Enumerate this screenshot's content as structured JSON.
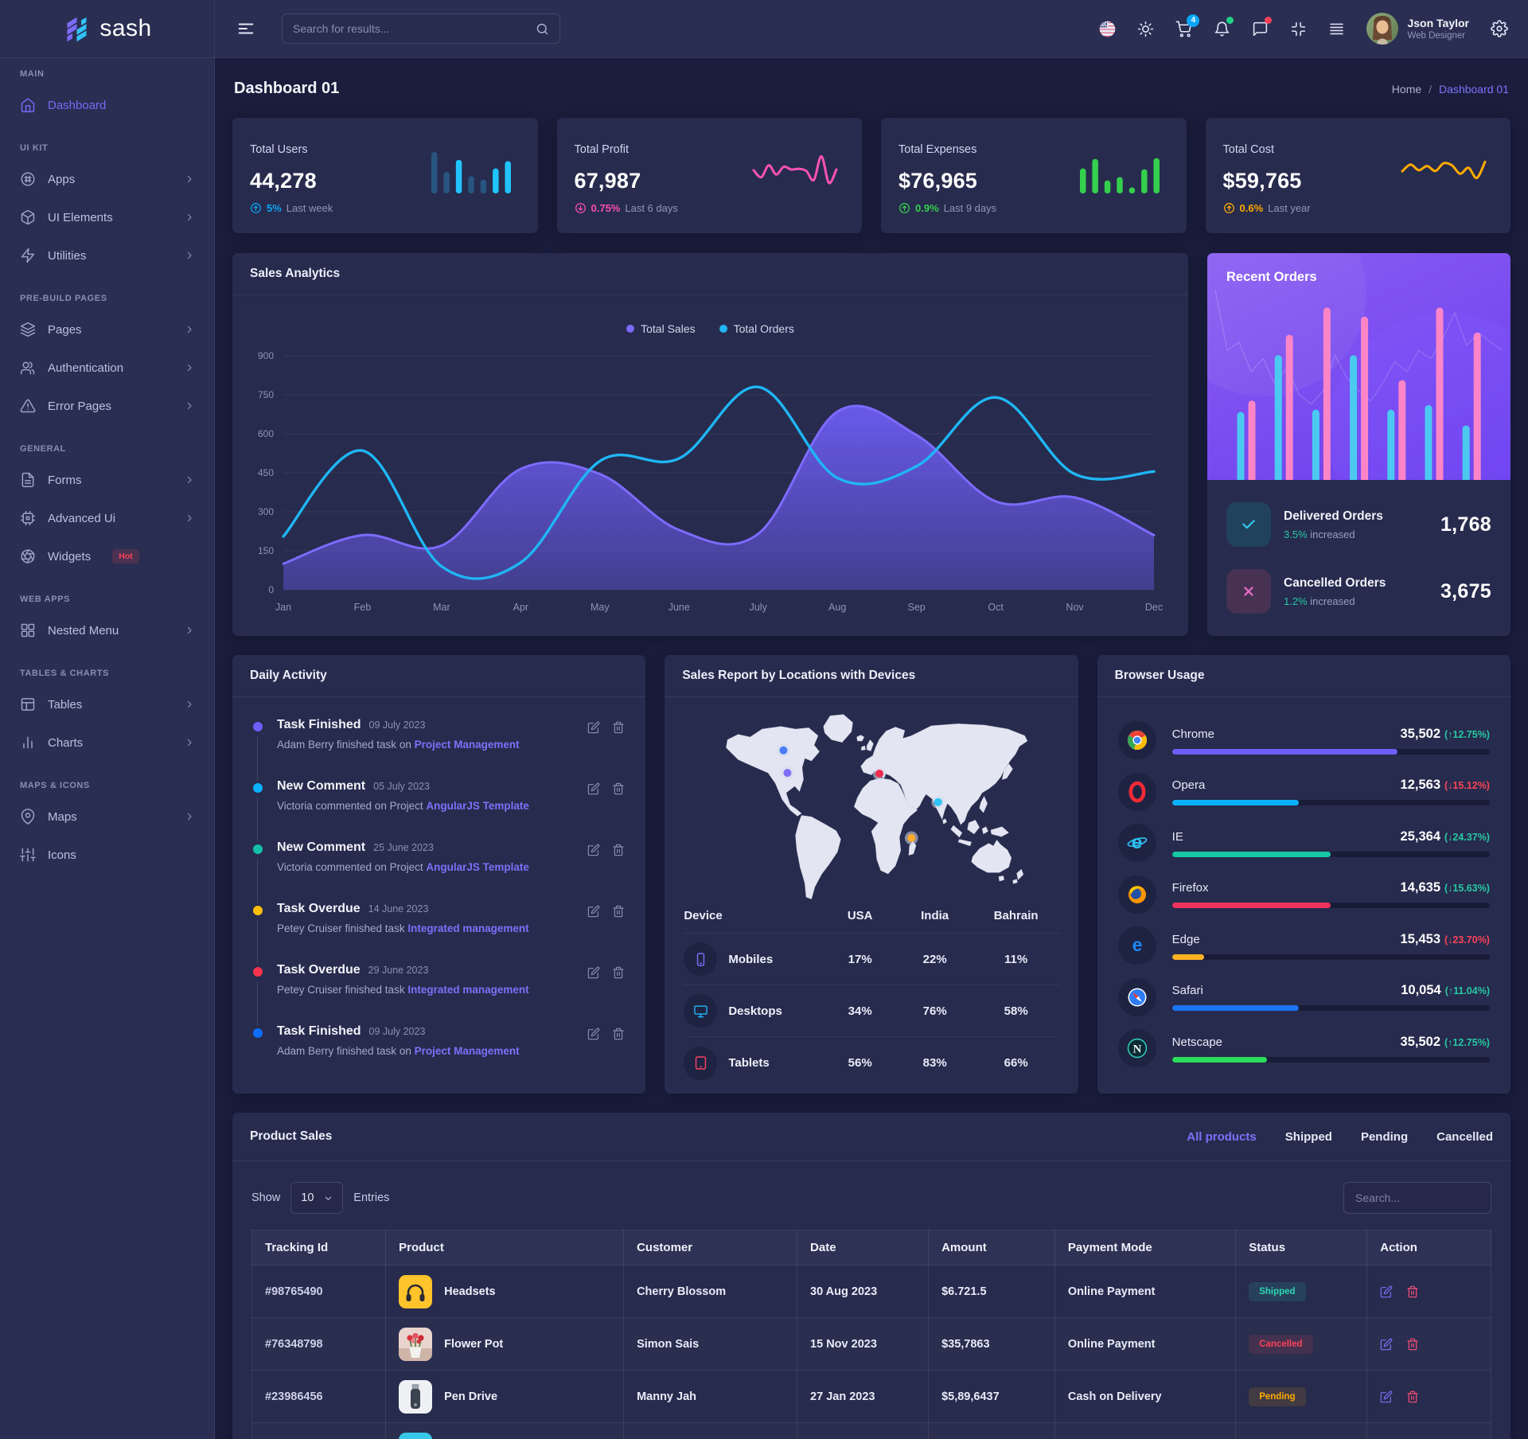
{
  "brand": {
    "name": "sash"
  },
  "sidebar": {
    "sections": [
      {
        "label": "MAIN",
        "items": [
          {
            "label": "Dashboard",
            "icon": "home",
            "active": true,
            "chevron": false
          }
        ]
      },
      {
        "label": "UI KIT",
        "items": [
          {
            "label": "Apps",
            "icon": "apps",
            "chevron": true
          },
          {
            "label": "UI Elements",
            "icon": "box",
            "chevron": true
          },
          {
            "label": "Utilities",
            "icon": "zap",
            "chevron": true
          }
        ]
      },
      {
        "label": "PRE-BUILD PAGES",
        "items": [
          {
            "label": "Pages",
            "icon": "layers",
            "chevron": true
          },
          {
            "label": "Authentication",
            "icon": "users",
            "chevron": true
          },
          {
            "label": "Error Pages",
            "icon": "alert",
            "chevron": true
          }
        ]
      },
      {
        "label": "GENERAL",
        "items": [
          {
            "label": "Forms",
            "icon": "file",
            "chevron": true
          },
          {
            "label": "Advanced Ui",
            "icon": "cpu",
            "chevron": true
          },
          {
            "label": "Widgets",
            "icon": "aperture",
            "chevron": false,
            "badge": "Hot"
          }
        ]
      },
      {
        "label": "WEB APPS",
        "items": [
          {
            "label": "Nested Menu",
            "icon": "grid",
            "chevron": true
          }
        ]
      },
      {
        "label": "TABLES & CHARTS",
        "items": [
          {
            "label": "Tables",
            "icon": "table",
            "chevron": true
          },
          {
            "label": "Charts",
            "icon": "chart",
            "chevron": true
          }
        ]
      },
      {
        "label": "MAPS & ICONS",
        "items": [
          {
            "label": "Maps",
            "icon": "pin",
            "chevron": true
          },
          {
            "label": "Icons",
            "icon": "sliders",
            "chevron": false
          }
        ]
      }
    ]
  },
  "header": {
    "search_placeholder": "Search for results...",
    "cart_badge": "4",
    "user": {
      "name": "Json Taylor",
      "role": "Web Designer"
    }
  },
  "page": {
    "title": "Dashboard 01",
    "breadcrumb_home": "Home",
    "breadcrumb_sep": "/",
    "breadcrumb_current": "Dashboard 01"
  },
  "stats": [
    {
      "label": "Total Users",
      "value": "44,278",
      "delta": "5%",
      "period": "Last week",
      "dir": "up",
      "accent": "#0da5f4",
      "spark": {
        "type": "bars",
        "values": [
          96,
          50,
          78,
          40,
          32,
          58,
          75
        ],
        "bright": [
          0,
          0,
          1,
          0,
          0,
          1,
          1
        ],
        "color": "#21c3fc",
        "color_dim": "#2a6391"
      }
    },
    {
      "label": "Total Profit",
      "value": "67,987",
      "delta": "0.75%",
      "period": "Last 6 days",
      "dir": "down",
      "accent": "#fa4fb3",
      "spark": {
        "type": "line",
        "color": "#fa52b5",
        "values": [
          48,
          28,
          62,
          36,
          58,
          50,
          52,
          46,
          20,
          88,
          12,
          50
        ]
      }
    },
    {
      "label": "Total Expenses",
      "value": "$76,965",
      "delta": "0.9%",
      "period": "Last 9 days",
      "dir": "up",
      "accent": "#35cf4e",
      "spark": {
        "type": "bars",
        "values": [
          58,
          80,
          30,
          38,
          14,
          56,
          82
        ],
        "bright": [
          1,
          1,
          1,
          1,
          1,
          1,
          1
        ],
        "color": "#35cf4e",
        "color_dim": "#35cf4e"
      }
    },
    {
      "label": "Total Cost",
      "value": "$59,765",
      "delta": "0.6%",
      "period": "Last year",
      "dir": "up",
      "accent": "#ffab00",
      "spark": {
        "type": "line",
        "color": "#ffab00",
        "values": [
          45,
          64,
          48,
          60,
          46,
          68,
          62,
          38,
          55,
          26,
          72
        ]
      }
    }
  ],
  "chart_data": [
    {
      "name": "sales_analytics",
      "type": "area-line",
      "title": "Sales Analytics",
      "categories": [
        "Jan",
        "Feb",
        "Mar",
        "Apr",
        "May",
        "June",
        "July",
        "Aug",
        "Sep",
        "Oct",
        "Nov",
        "Dec"
      ],
      "series": [
        {
          "name": "Total Sales",
          "color": "#7c6bfd",
          "fill": true,
          "values": [
            100,
            210,
            170,
            465,
            445,
            230,
            215,
            685,
            595,
            340,
            355,
            210
          ]
        },
        {
          "name": "Total Orders",
          "color": "#1fb6f5",
          "fill": false,
          "values": [
            205,
            535,
            90,
            105,
            495,
            505,
            780,
            430,
            475,
            740,
            445,
            455
          ]
        }
      ],
      "ylim": [
        0,
        900
      ],
      "yticks": [
        0,
        150,
        300,
        450,
        600,
        750,
        900
      ],
      "grid": "horizontal",
      "legend_position": "top"
    },
    {
      "name": "recent_orders_bars",
      "type": "bar",
      "title": "Recent Orders",
      "series": [
        {
          "name": "orders-a",
          "color": "#4cc9f0",
          "values": [
            30,
            55,
            31,
            55,
            31,
            33,
            24
          ]
        },
        {
          "name": "orders-b",
          "color": "#fc85c7",
          "values": [
            35,
            64,
            76,
            72,
            44,
            76,
            65
          ]
        }
      ],
      "overlay_line": [
        92,
        55,
        60,
        42,
        50,
        34,
        45,
        28,
        22,
        30,
        52,
        38,
        30,
        24,
        35,
        48,
        42,
        55,
        50,
        62,
        78,
        58,
        66,
        60,
        55
      ]
    },
    {
      "name": "device_report",
      "type": "table",
      "columns": [
        "Device",
        "USA",
        "India",
        "Bahrain"
      ],
      "rows": [
        {
          "device": "Mobiles",
          "icon": "mobile",
          "color": "#7c6ff8",
          "values": [
            "17%",
            "22%",
            "11%"
          ]
        },
        {
          "device": "Desktops",
          "icon": "desktop",
          "color": "#22b8f5",
          "values": [
            "34%",
            "76%",
            "58%"
          ]
        },
        {
          "device": "Tablets",
          "icon": "tablet",
          "color": "#fb4264",
          "values": [
            "56%",
            "83%",
            "66%"
          ]
        }
      ],
      "map_markers": [
        {
          "x": 108,
          "y": 62,
          "color": "#4a7df6"
        },
        {
          "x": 114,
          "y": 96,
          "color": "#7c6ff8"
        },
        {
          "x": 252,
          "y": 97,
          "color": "#ee2d4e"
        },
        {
          "x": 340,
          "y": 140,
          "color": "#2fc4fa"
        },
        {
          "x": 300,
          "y": 194,
          "color": "#ffab2d"
        }
      ]
    },
    {
      "name": "browser_usage",
      "type": "bar",
      "title": "Browser Usage",
      "rows": [
        {
          "name": "Chrome",
          "icon": "chrome",
          "value": "35,502",
          "change": "12.75%",
          "dir": "up",
          "change_tone": "up",
          "bar_color": "#6c5ffc",
          "pct": 71
        },
        {
          "name": "Opera",
          "icon": "opera",
          "value": "12,563",
          "change": "15.12%",
          "dir": "down",
          "change_tone": "down",
          "bar_color": "#0bb2fb",
          "pct": 40
        },
        {
          "name": "IE",
          "icon": "ie",
          "value": "25,364",
          "change": "24.37%",
          "dir": "down",
          "change_tone": "up",
          "bar_color": "#17c9a5",
          "pct": 50
        },
        {
          "name": "Firefox",
          "icon": "firefox",
          "value": "14,635",
          "change": "15.63%",
          "dir": "down",
          "change_tone": "up",
          "bar_color": "#ee335f",
          "pct": 50
        },
        {
          "name": "Edge",
          "icon": "edge",
          "value": "15,453",
          "change": "23.70%",
          "dir": "down",
          "change_tone": "down",
          "bar_color": "#ffb322",
          "pct": 10
        },
        {
          "name": "Safari",
          "icon": "safari",
          "value": "10,054",
          "change": "11.04%",
          "dir": "up",
          "change_tone": "up",
          "bar_color": "#1d74f5",
          "pct": 40
        },
        {
          "name": "Netscape",
          "icon": "netscape",
          "value": "35,502",
          "change": "12.75%",
          "dir": "up",
          "change_tone": "up",
          "bar_color": "#2add5c",
          "pct": 30
        }
      ]
    }
  ],
  "recent_orders": {
    "title": "Recent Orders",
    "rows": [
      {
        "icon": "check",
        "label": "Delivered Orders",
        "delta": "3.5%",
        "suffix": "increased",
        "value": "1,768"
      },
      {
        "icon": "cross",
        "label": "Cancelled Orders",
        "delta": "1.2%",
        "suffix": "increased",
        "value": "3,675"
      }
    ]
  },
  "daily_activity": {
    "title": "Daily Activity",
    "items": [
      {
        "dot": "#6c5ffc",
        "title": "Task Finished",
        "date": "09 July 2023",
        "text": "Adam Berry finished task on ",
        "link": "Project Management"
      },
      {
        "dot": "#0ab2fd",
        "title": "New Comment",
        "date": "05 July 2023",
        "text": "Victoria commented on Project ",
        "link": "AngularJS Template"
      },
      {
        "dot": "#13bfa6",
        "title": "New Comment",
        "date": "25 June 2023",
        "text": "Victoria commented on Project ",
        "link": "AngularJS Template"
      },
      {
        "dot": "#ffbe0b",
        "title": "Task Overdue",
        "date": "14 June 2023",
        "text": "Petey Cruiser finished task ",
        "link": "Integrated management"
      },
      {
        "dot": "#f5334f",
        "title": "Task Overdue",
        "date": "29 June 2023",
        "text": "Petey Cruiser finished task ",
        "link": "Integrated management"
      },
      {
        "dot": "#0d6efd",
        "title": "Task Finished",
        "date": "09 July 2023",
        "text": "Adam Berry finished task on ",
        "link": "Project Management"
      }
    ]
  },
  "sales_report": {
    "title": "Sales Report by Locations with Devices"
  },
  "browser_usage_card": {
    "title": "Browser Usage"
  },
  "product_sales": {
    "title": "Product Sales",
    "tabs": [
      {
        "label": "All products",
        "active": true
      },
      {
        "label": "Shipped",
        "active": false
      },
      {
        "label": "Pending",
        "active": false
      },
      {
        "label": "Cancelled",
        "active": false
      }
    ],
    "show_label": "Show",
    "page_size": "10",
    "entries_label": "Entries",
    "search_placeholder": "Search...",
    "columns": [
      "Tracking Id",
      "Product",
      "Customer",
      "Date",
      "Amount",
      "Payment Mode",
      "Status",
      "Action"
    ],
    "rows": [
      {
        "id": "#98765490",
        "product": "Headsets",
        "img": "headset",
        "customer": "Cherry Blossom",
        "date": "30 Aug 2023",
        "amount": "$6.721.5",
        "payment": "Online Payment",
        "status": "Shipped",
        "tone": "teal"
      },
      {
        "id": "#76348798",
        "product": "Flower Pot",
        "img": "flower",
        "customer": "Simon Sais",
        "date": "15 Nov 2023",
        "amount": "$35,7863",
        "payment": "Online Payment",
        "status": "Cancelled",
        "tone": "red"
      },
      {
        "id": "#23986456",
        "product": "Pen Drive",
        "img": "pendrive",
        "customer": "Manny Jah",
        "date": "27 Jan 2023",
        "amount": "$5,89,6437",
        "payment": "Cash on Delivery",
        "status": "Pending",
        "tone": "orange"
      },
      {
        "id": "",
        "product": "",
        "img": "teal",
        "customer": "",
        "date": "",
        "amount": "",
        "payment": "",
        "status": "",
        "tone": ""
      }
    ]
  }
}
